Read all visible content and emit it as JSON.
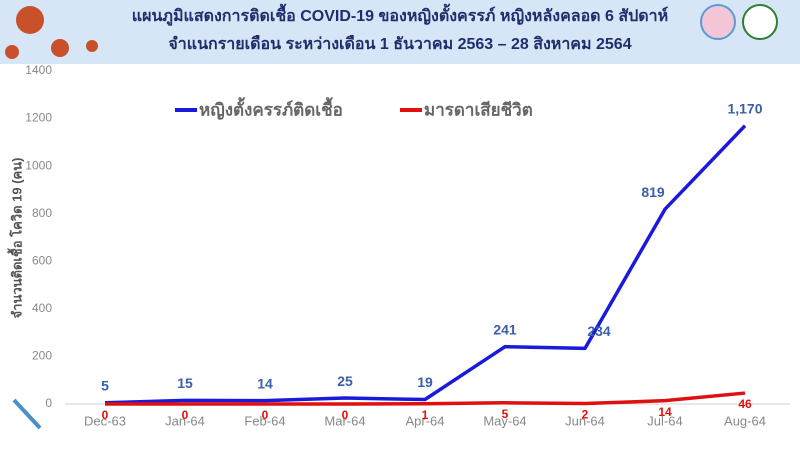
{
  "chart_data": {
    "type": "line",
    "title": "แผนภูมิแสดงการติดเชื้อ COVID-19 ของหญิงตั้งครรภ์ หญิงหลังคลอด 6 สัปดาห์",
    "subtitle": "จำแนกรายเดือน ระหว่างเดือน 1 ธันวาคม 2563 – 28 สิงหาคม 2564",
    "y_label": "จำนวนติดเชื้อ โควิด 19 (คน)",
    "categories": [
      "Dec-63",
      "Jan-64",
      "Feb-64",
      "Mar-64",
      "Apr-64",
      "May-64",
      "Jun-64",
      "Jul-64",
      "Aug-64"
    ],
    "series": [
      {
        "name": "หญิงตั้งครรภ์ติดเชื้อ",
        "color": "#1a1adb",
        "values": [
          5,
          15,
          14,
          25,
          19,
          241,
          234,
          819,
          1170
        ],
        "value_labels": [
          "5",
          "15",
          "14",
          "25",
          "19",
          "241",
          "234",
          "819",
          "1,170"
        ]
      },
      {
        "name": "มารดาเสียชีวิต",
        "color": "#e01010",
        "values": [
          0,
          0,
          0,
          0,
          1,
          5,
          2,
          14,
          46
        ]
      }
    ],
    "ylim": [
      0,
      1400
    ],
    "yticks": [
      0,
      200,
      400,
      600,
      800,
      1000,
      1200,
      1400
    ],
    "grid": false
  }
}
